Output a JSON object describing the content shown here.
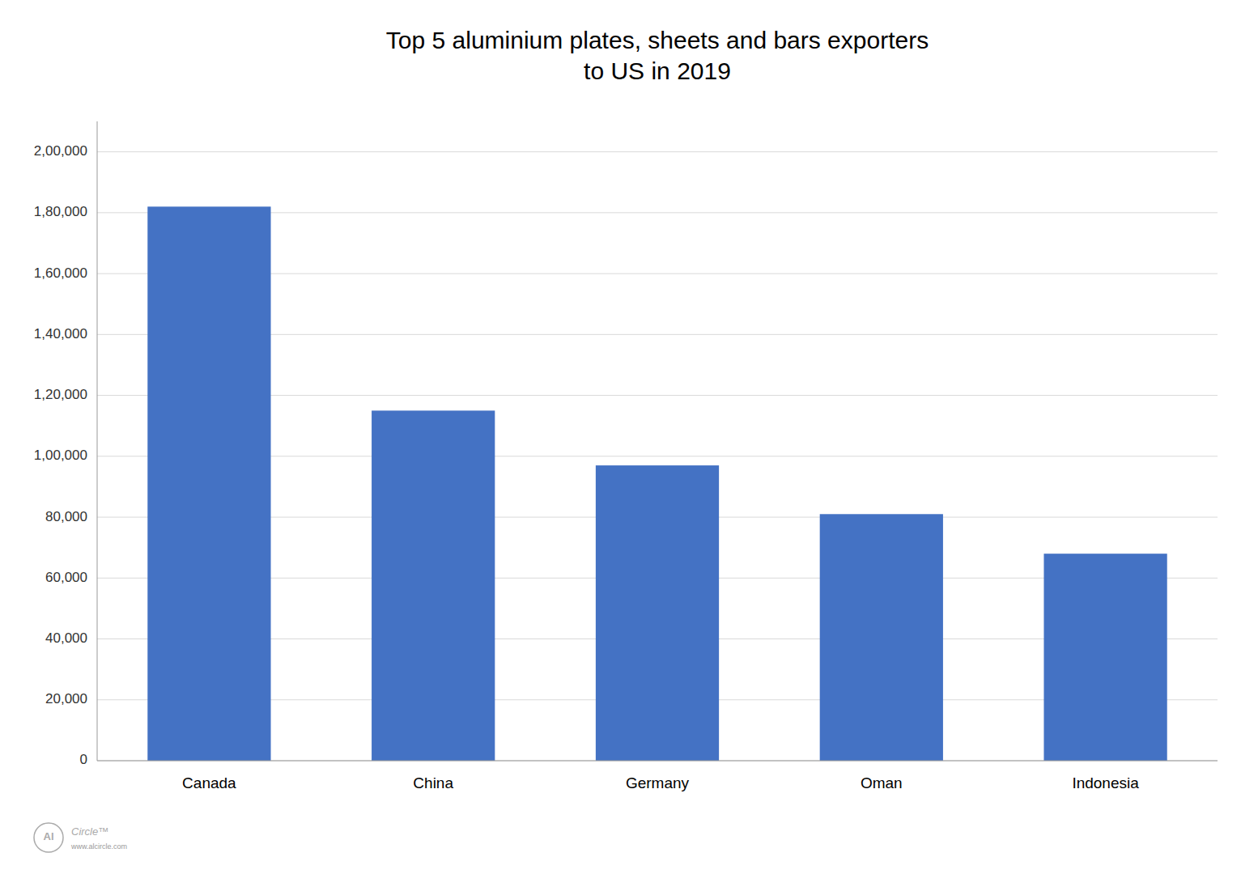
{
  "chart_data": {
    "type": "bar",
    "title": "Top 5 aluminium plates, sheets and bars exporters\nto US in 2019",
    "categories": [
      "Canada",
      "China",
      "Germany",
      "Oman",
      "Indonesia"
    ],
    "values": [
      182000,
      115000,
      97000,
      81000,
      68000
    ],
    "color": "#4472C4",
    "ylim": [
      0,
      210000
    ],
    "yticks": [
      0,
      {
        "value": 20000,
        "label": "20,000"
      },
      {
        "value": 40000,
        "label": "40,000"
      },
      {
        "value": 60000,
        "label": "60,000"
      },
      {
        "value": 80000,
        "label": "80,000"
      },
      {
        "value": 100000,
        "label": "1,00,000"
      },
      {
        "value": 120000,
        "label": "1,20,000"
      },
      {
        "value": 140000,
        "label": "1,40,000"
      },
      {
        "value": 160000,
        "label": "1,60,000"
      },
      {
        "value": 180000,
        "label": "1,80,000"
      },
      {
        "value": 200000,
        "label": "2,00,000"
      }
    ],
    "grid": true,
    "annotations": [
      "Al",
      "Circle™",
      "www.alcircle.com"
    ]
  }
}
